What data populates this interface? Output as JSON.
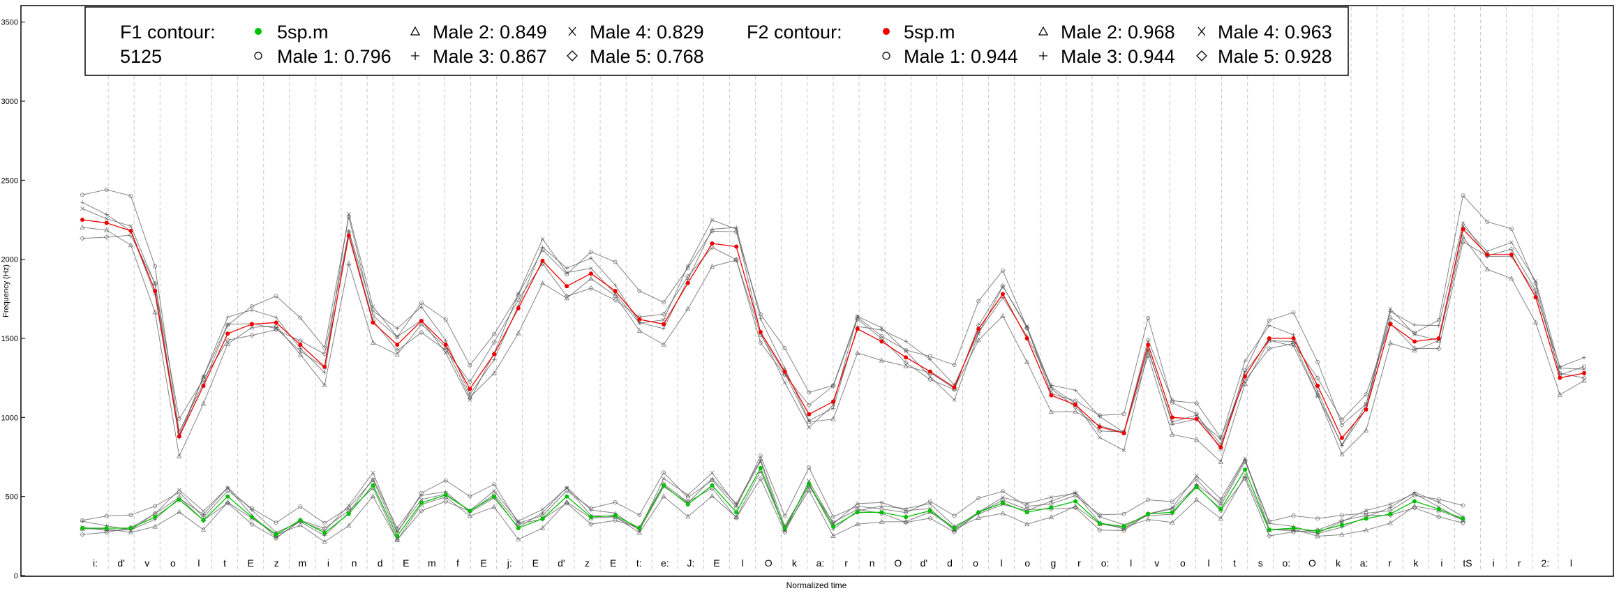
{
  "chart_data": {
    "type": "line",
    "xlabel": "Normalized time",
    "ylabel": "Frequency (Hz)",
    "ylim": [
      0,
      3600
    ],
    "yticks": [
      0,
      500,
      1000,
      1500,
      2000,
      2500,
      3000,
      3500
    ],
    "grid": "vertical dashed at segment boundaries",
    "legend_position": "top",
    "segments": [
      "i:",
      "d'",
      "v",
      "o",
      "l",
      "t",
      "E",
      "z",
      "m",
      "i",
      "n",
      "d",
      "E",
      "m",
      "f",
      "E",
      "j:",
      "E",
      "d'",
      "z",
      "E",
      "t:",
      "e:",
      "J:",
      "E",
      "l",
      "O",
      "k",
      "a:",
      "r",
      "n",
      "O",
      "d'",
      "d",
      "o",
      "l",
      "o",
      "g",
      "r",
      "o:",
      "l",
      "v",
      "o",
      "l",
      "t",
      "s",
      "o:",
      "O",
      "k",
      "a:",
      "r",
      "k",
      "i",
      "tS",
      "i",
      "r",
      "2:",
      "l"
    ],
    "legend": {
      "f1_title_line1": "F1 contour:",
      "f1_title_line2": "5125",
      "f2_title": "F2 contour:",
      "f1_items": [
        {
          "label": "5sp.m",
          "marker": "dot-green"
        },
        {
          "label": "Male 1: 0.796",
          "marker": "circle"
        },
        {
          "label": "Male 2: 0.849",
          "marker": "triangle"
        },
        {
          "label": "Male 3: 0.867",
          "marker": "plus"
        },
        {
          "label": "Male 4: 0.829",
          "marker": "cross"
        },
        {
          "label": "Male 5: 0.768",
          "marker": "diamond"
        }
      ],
      "f2_items": [
        {
          "label": "5sp.m",
          "marker": "dot-red"
        },
        {
          "label": "Male 1: 0.944",
          "marker": "circle"
        },
        {
          "label": "Male 2: 0.968",
          "marker": "triangle"
        },
        {
          "label": "Male 3: 0.944",
          "marker": "plus"
        },
        {
          "label": "Male 4: 0.963",
          "marker": "cross"
        },
        {
          "label": "Male 5: 0.928",
          "marker": "diamond"
        }
      ]
    },
    "colors": {
      "f1_mean": "#00c000",
      "f2_mean": "#ee0000",
      "speaker": "#777777"
    },
    "f2_mean": [
      [
        0,
        2250
      ],
      [
        1,
        2230
      ],
      [
        2,
        2180
      ],
      [
        3,
        1800
      ],
      [
        4,
        880
      ],
      [
        5,
        1200
      ],
      [
        6,
        1530
      ],
      [
        7,
        1590
      ],
      [
        8,
        1600
      ],
      [
        9,
        1460
      ],
      [
        10,
        1320
      ],
      [
        11,
        2150
      ],
      [
        12,
        1600
      ],
      [
        13,
        1460
      ],
      [
        14,
        1610
      ],
      [
        15,
        1460
      ],
      [
        16,
        1180
      ],
      [
        17,
        1400
      ],
      [
        18,
        1690
      ],
      [
        19,
        1990
      ],
      [
        20,
        1830
      ],
      [
        21,
        1910
      ],
      [
        22,
        1800
      ],
      [
        23,
        1620
      ],
      [
        24,
        1590
      ],
      [
        25,
        1850
      ],
      [
        26,
        2100
      ],
      [
        27,
        2080
      ],
      [
        28,
        1540
      ],
      [
        29,
        1290
      ],
      [
        30,
        1020
      ],
      [
        31,
        1100
      ],
      [
        32,
        1560
      ],
      [
        33,
        1480
      ],
      [
        34,
        1380
      ],
      [
        35,
        1290
      ],
      [
        36,
        1190
      ],
      [
        37,
        1560
      ],
      [
        38,
        1780
      ],
      [
        39,
        1500
      ],
      [
        40,
        1140
      ],
      [
        41,
        1080
      ],
      [
        42,
        940
      ],
      [
        43,
        900
      ],
      [
        44,
        1460
      ],
      [
        45,
        1000
      ],
      [
        46,
        990
      ],
      [
        47,
        810
      ],
      [
        48,
        1260
      ],
      [
        49,
        1500
      ],
      [
        50,
        1500
      ],
      [
        51,
        1200
      ],
      [
        52,
        870
      ],
      [
        53,
        1050
      ],
      [
        54,
        1590
      ],
      [
        55,
        1480
      ],
      [
        56,
        1500
      ],
      [
        57,
        2190
      ],
      [
        58,
        2030
      ],
      [
        59,
        2030
      ],
      [
        60,
        1760
      ],
      [
        61,
        1250
      ],
      [
        62,
        1280
      ]
    ],
    "f1_mean": [
      [
        0,
        300
      ],
      [
        1,
        300
      ],
      [
        2,
        300
      ],
      [
        3,
        370
      ],
      [
        4,
        480
      ],
      [
        5,
        350
      ],
      [
        6,
        500
      ],
      [
        7,
        370
      ],
      [
        8,
        260
      ],
      [
        9,
        350
      ],
      [
        10,
        270
      ],
      [
        11,
        390
      ],
      [
        12,
        570
      ],
      [
        13,
        250
      ],
      [
        14,
        460
      ],
      [
        15,
        510
      ],
      [
        16,
        410
      ],
      [
        17,
        500
      ],
      [
        18,
        300
      ],
      [
        19,
        360
      ],
      [
        20,
        500
      ],
      [
        21,
        370
      ],
      [
        22,
        380
      ],
      [
        23,
        300
      ],
      [
        24,
        570
      ],
      [
        25,
        450
      ],
      [
        26,
        570
      ],
      [
        27,
        400
      ],
      [
        28,
        680
      ],
      [
        29,
        300
      ],
      [
        30,
        580
      ],
      [
        31,
        310
      ],
      [
        32,
        400
      ],
      [
        33,
        400
      ],
      [
        34,
        370
      ],
      [
        35,
        410
      ],
      [
        36,
        300
      ],
      [
        37,
        400
      ],
      [
        38,
        460
      ],
      [
        39,
        400
      ],
      [
        40,
        430
      ],
      [
        41,
        470
      ],
      [
        42,
        330
      ],
      [
        43,
        310
      ],
      [
        44,
        390
      ],
      [
        45,
        400
      ],
      [
        46,
        560
      ],
      [
        47,
        420
      ],
      [
        48,
        670
      ],
      [
        49,
        290
      ],
      [
        50,
        300
      ],
      [
        51,
        280
      ],
      [
        52,
        320
      ],
      [
        53,
        360
      ],
      [
        54,
        390
      ],
      [
        55,
        470
      ],
      [
        56,
        420
      ],
      [
        57,
        360
      ]
    ]
  }
}
